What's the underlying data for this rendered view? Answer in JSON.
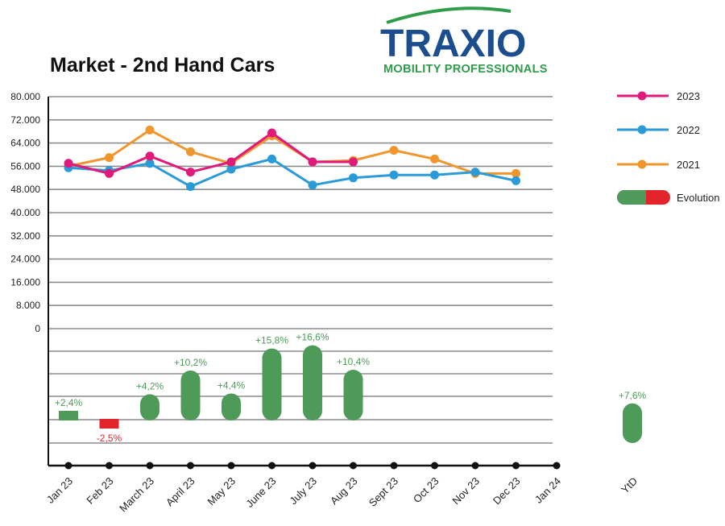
{
  "logo": {
    "main": "TRAXIO",
    "sub": "MOBILITY PROFESSIONALS"
  },
  "colors": {
    "2023": "#e0197a",
    "2022": "#2a9bd8",
    "2021": "#f0962d",
    "positive": "#4e9a59",
    "negative": "#e3242b",
    "grid": "#8c8c8c"
  },
  "chart_data": {
    "type": "line",
    "title": "Market - 2nd Hand Cars",
    "categories": [
      "Jan 23",
      "Feb 23",
      "March 23",
      "April 23",
      "May 23",
      "June 23",
      "July 23",
      "Aug 23",
      "Sept 23",
      "Oct 23",
      "Nov 23",
      "Dec 23",
      "Jan 24"
    ],
    "ylim": [
      0,
      80000
    ],
    "yticks": [
      "80.000",
      "72.000",
      "64.000",
      "56.000",
      "48.000",
      "40.000",
      "32.000",
      "24.000",
      "16.000",
      "8.000",
      "0"
    ],
    "grid": true,
    "legend_position": "right",
    "series": [
      {
        "name": "2023",
        "values": [
          57000,
          53500,
          59500,
          54000,
          57500,
          67500,
          57500,
          57500,
          null,
          null,
          null,
          null,
          null
        ]
      },
      {
        "name": "2022",
        "values": [
          55500,
          54500,
          57000,
          49000,
          55000,
          58500,
          49500,
          52000,
          53000,
          53000,
          54000,
          51000,
          null
        ]
      },
      {
        "name": "2021",
        "values": [
          56000,
          59000,
          68500,
          61000,
          57000,
          66500,
          57500,
          58000,
          61500,
          58500,
          53500,
          53500,
          null
        ]
      }
    ],
    "evolution": {
      "legend_label": "Evolution",
      "values": [
        2.4,
        -2.5,
        4.2,
        10.2,
        4.4,
        15.8,
        16.6,
        10.4
      ],
      "labels": [
        "+2,4%",
        "-2,5%",
        "+4,2%",
        "+10,2%",
        "+4,4%",
        "+15,8%",
        "+16,6%",
        "+10,4%"
      ],
      "ytd": {
        "category": "YtD",
        "value": 7.6,
        "label": "+7,6%"
      }
    }
  }
}
